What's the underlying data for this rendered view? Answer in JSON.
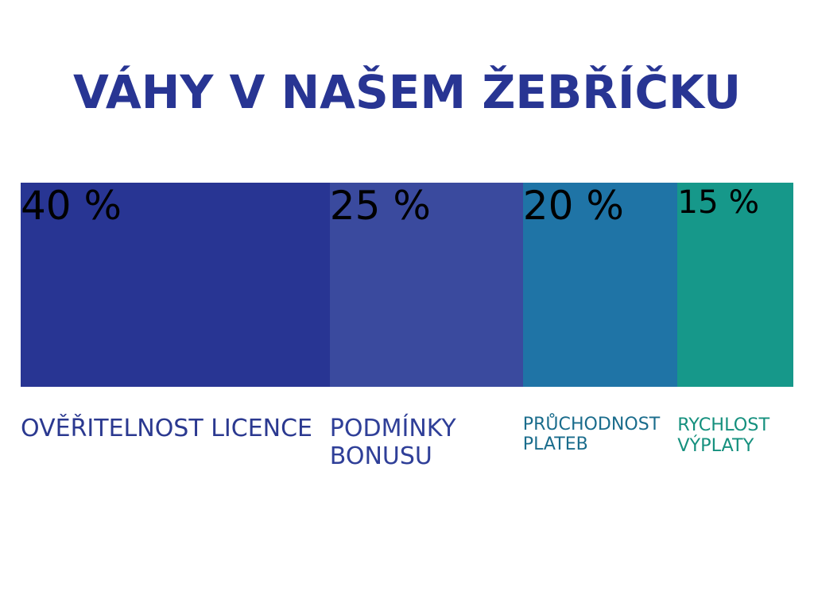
{
  "chart_data": {
    "type": "stack",
    "title": "VÁHY V NAŠEM ŽEBŘÍČKU",
    "categories": [
      "OVĚŘITELNOST LICENCE",
      "PODMÍNKY BONUSU",
      "PRŮCHODNOST PLATEB",
      "RYCHLOST VÝPLATY"
    ],
    "values": [
      40,
      25,
      20,
      15
    ],
    "value_labels": [
      "40 %",
      "25 %",
      "20 %",
      "15 %"
    ],
    "colors": [
      "#283593",
      "#3a4a9e",
      "#1f74a6",
      "#16988a"
    ],
    "label_colors": [
      "#2b3990",
      "#2f3f98",
      "#1a6c8c",
      "#15907e"
    ]
  }
}
